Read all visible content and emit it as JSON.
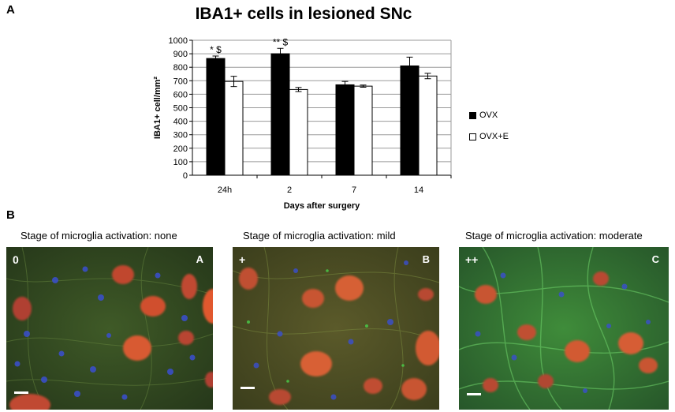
{
  "figure": {
    "panel_a_label": "A",
    "panel_b_label": "B"
  },
  "chart_data": {
    "type": "bar",
    "title": "IBA1+ cells in lesioned SNc",
    "xlabel": "Days after surgery",
    "ylabel": "IBA1+ cell/mm²",
    "ylim": [
      0,
      1000
    ],
    "yticks": [
      0,
      100,
      200,
      300,
      400,
      500,
      600,
      700,
      800,
      900,
      1000
    ],
    "categories": [
      "24h",
      "2",
      "7",
      "14"
    ],
    "grid": true,
    "legend_position": "right",
    "series": [
      {
        "name": "OVX",
        "color": "#000000",
        "values": [
          865,
          900,
          670,
          810
        ],
        "errors": [
          18,
          40,
          25,
          65
        ]
      },
      {
        "name": "OVX+E",
        "color": "#ffffff",
        "values": [
          695,
          635,
          660,
          735
        ],
        "errors": [
          38,
          15,
          8,
          20
        ]
      }
    ],
    "annotations": [
      "* $",
      "** $",
      "",
      ""
    ]
  },
  "panel_b": {
    "images": [
      {
        "caption": "Stage of microglia activation: none",
        "stage": "0",
        "tag": "A"
      },
      {
        "caption": "Stage of microglia activation: mild",
        "stage": "+",
        "tag": "B"
      },
      {
        "caption": "Stage of microglia activation: moderate",
        "stage": "++",
        "tag": "C"
      }
    ]
  }
}
